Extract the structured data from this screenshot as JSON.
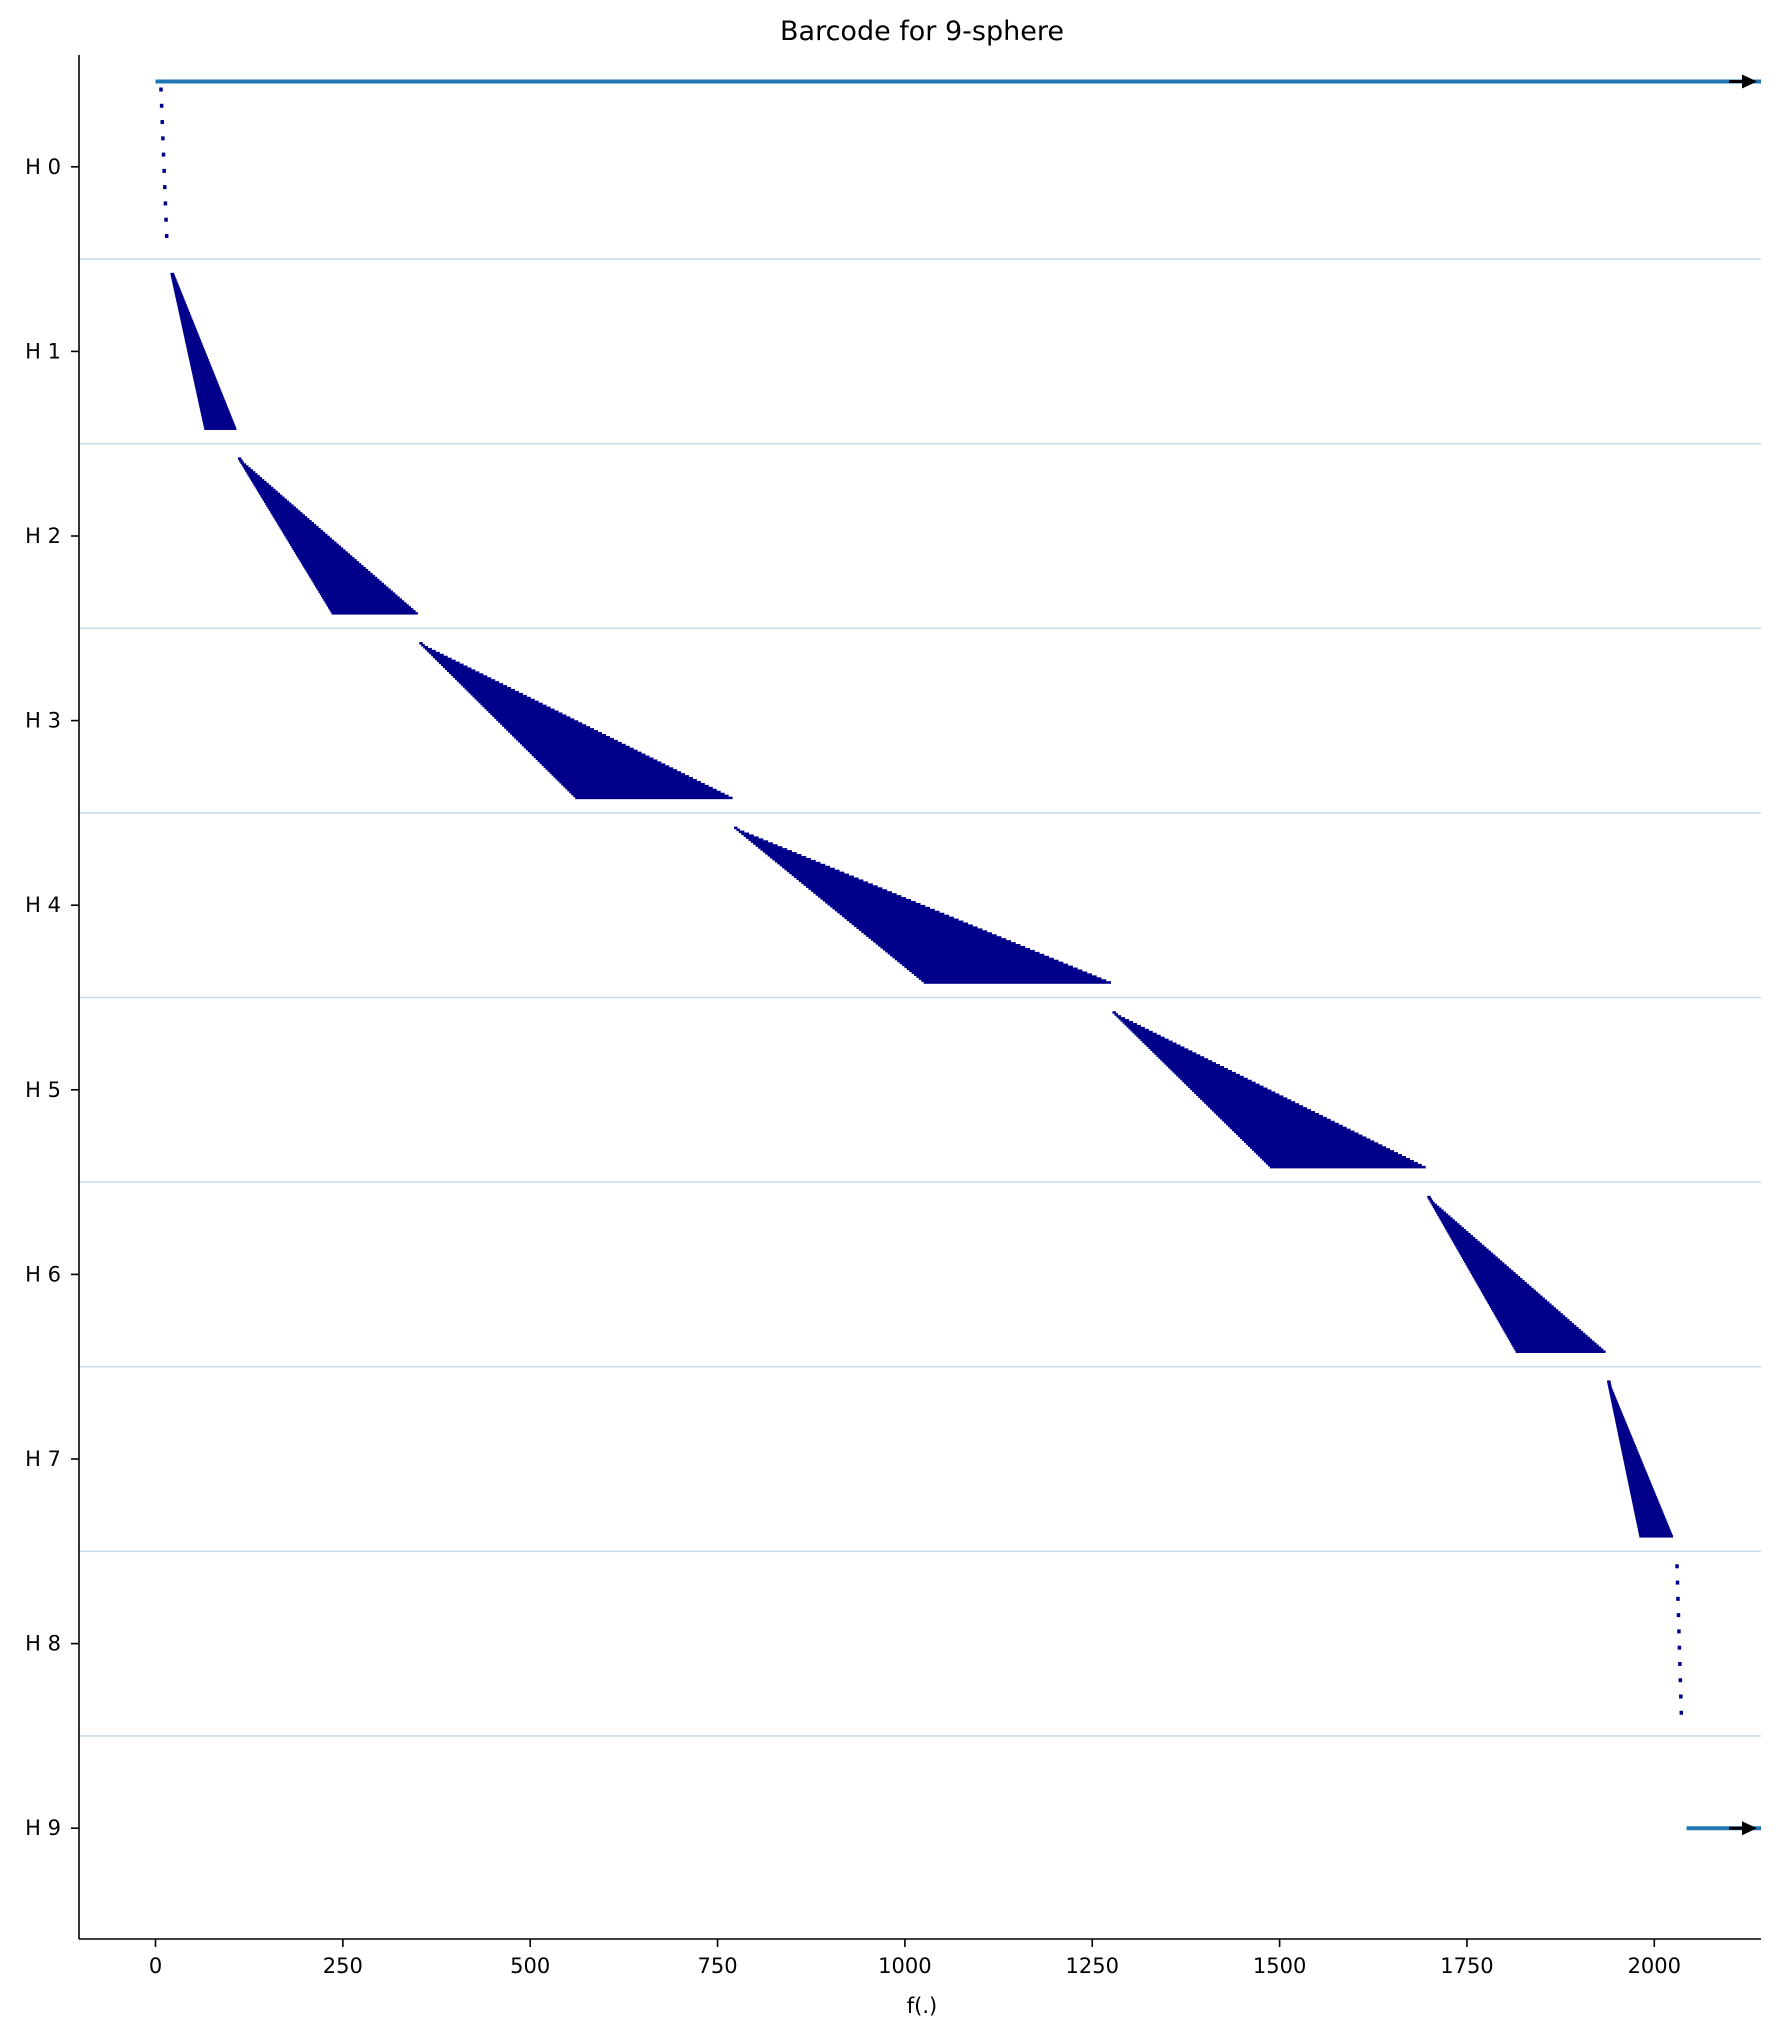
{
  "chart_data": {
    "type": "barcode",
    "title": "Barcode for 9-sphere",
    "xlabel": "f(.)",
    "ylabel": "",
    "xlim": [
      -103,
      2147
    ],
    "x_ticks": [
      0,
      250,
      500,
      750,
      1000,
      1250,
      1500,
      1750,
      2000
    ],
    "x_tick_labels": [
      "0",
      "250",
      "500",
      "750",
      "1000",
      "1250",
      "1500",
      "1750",
      "2000"
    ],
    "categories": [
      "H 0",
      "H 1",
      "H 2",
      "H 3",
      "H 4",
      "H 5",
      "H 6",
      "H 7",
      "H 8",
      "H 9"
    ],
    "separators": true,
    "colors": {
      "finite_bar": "#00008b",
      "infinite_bar": "#1f77b4",
      "arrow": "#000000",
      "separator": "#c8ddeb",
      "axis": "#000000"
    },
    "series": [
      {
        "dimension": 0,
        "bars": 20,
        "birth_range": [
          5,
          13
        ],
        "death_range": [
          6,
          15
        ],
        "infinite_bars": [
          {
            "birth": 0
          }
        ]
      },
      {
        "dimension": 1,
        "bars": 80,
        "birth_range": [
          20,
          65
        ],
        "death_range": [
          25,
          108
        ]
      },
      {
        "dimension": 2,
        "bars": 80,
        "birth_range": [
          110,
          235
        ],
        "death_range": [
          112,
          350
        ]
      },
      {
        "dimension": 3,
        "bars": 80,
        "birth_range": [
          352,
          560
        ],
        "death_range": [
          353,
          770
        ]
      },
      {
        "dimension": 4,
        "bars": 80,
        "birth_range": [
          772,
          1025
        ],
        "death_range": [
          773,
          1275
        ]
      },
      {
        "dimension": 5,
        "bars": 80,
        "birth_range": [
          1277,
          1487
        ],
        "death_range": [
          1278,
          1695
        ]
      },
      {
        "dimension": 6,
        "bars": 80,
        "birth_range": [
          1697,
          1815
        ],
        "death_range": [
          1698,
          1935
        ]
      },
      {
        "dimension": 7,
        "bars": 80,
        "birth_range": [
          1937,
          1980
        ],
        "death_range": [
          1940,
          2025
        ]
      },
      {
        "dimension": 8,
        "bars": 20,
        "birth_range": [
          2028,
          2034
        ],
        "death_range": [
          2031,
          2037
        ]
      },
      {
        "dimension": 9,
        "bars": 0,
        "infinite_bars": [
          {
            "birth": 2043
          }
        ]
      }
    ]
  }
}
